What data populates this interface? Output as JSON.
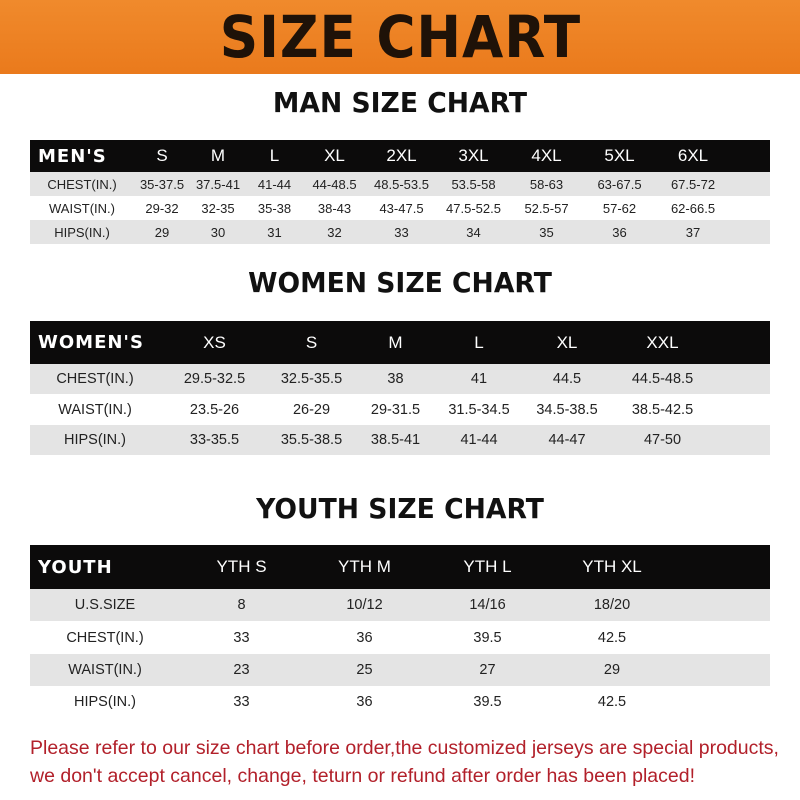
{
  "banner_title": "SIZE CHART",
  "colors": {
    "banner": "#ef8326",
    "header_row": "#0c0b0b",
    "stripe": "#e4e4e4",
    "footer_text": "#b2202a"
  },
  "men": {
    "title": "MAN SIZE CHART",
    "header": [
      "MEN'S",
      "S",
      "M",
      "L",
      "XL",
      "2XL",
      "3XL",
      "4XL",
      "5XL",
      "6XL"
    ],
    "rows": [
      [
        "CHEST(IN.)",
        "35-37.5",
        "37.5-41",
        "41-44",
        "44-48.5",
        "48.5-53.5",
        "53.5-58",
        "58-63",
        "63-67.5",
        "67.5-72"
      ],
      [
        "WAIST(IN.)",
        "29-32",
        "32-35",
        "35-38",
        "38-43",
        "43-47.5",
        "47.5-52.5",
        "52.5-57",
        "57-62",
        "62-66.5"
      ],
      [
        "HIPS(IN.)",
        "29",
        "30",
        "31",
        "32",
        "33",
        "34",
        "35",
        "36",
        "37"
      ]
    ]
  },
  "women": {
    "title": "WOMEN SIZE CHART",
    "header": [
      "WOMEN'S",
      "XS",
      "S",
      "M",
      "L",
      "XL",
      "XXL"
    ],
    "rows": [
      [
        "CHEST(IN.)",
        "29.5-32.5",
        "32.5-35.5",
        "38",
        "41",
        "44.5",
        "44.5-48.5"
      ],
      [
        "WAIST(IN.)",
        "23.5-26",
        "26-29",
        "29-31.5",
        "31.5-34.5",
        "34.5-38.5",
        "38.5-42.5"
      ],
      [
        "HIPS(IN.)",
        "33-35.5",
        "35.5-38.5",
        "38.5-41",
        "41-44",
        "44-47",
        "47-50"
      ]
    ]
  },
  "youth": {
    "title": "YOUTH SIZE CHART",
    "header": [
      "YOUTH",
      "YTH S",
      "YTH M",
      "YTH L",
      "YTH XL"
    ],
    "rows": [
      [
        "U.S.SIZE",
        "8",
        "10/12",
        "14/16",
        "18/20"
      ],
      [
        "CHEST(IN.)",
        "33",
        "36",
        "39.5",
        "42.5"
      ],
      [
        "WAIST(IN.)",
        "23",
        "25",
        "27",
        "29"
      ],
      [
        "HIPS(IN.)",
        "33",
        "36",
        "39.5",
        "42.5"
      ]
    ]
  },
  "footer": {
    "line1": "Please refer to our size chart before order,the customized jerseys are special products,",
    "line2": "we don't accept cancel, change, teturn or refund after order has been placed!"
  }
}
